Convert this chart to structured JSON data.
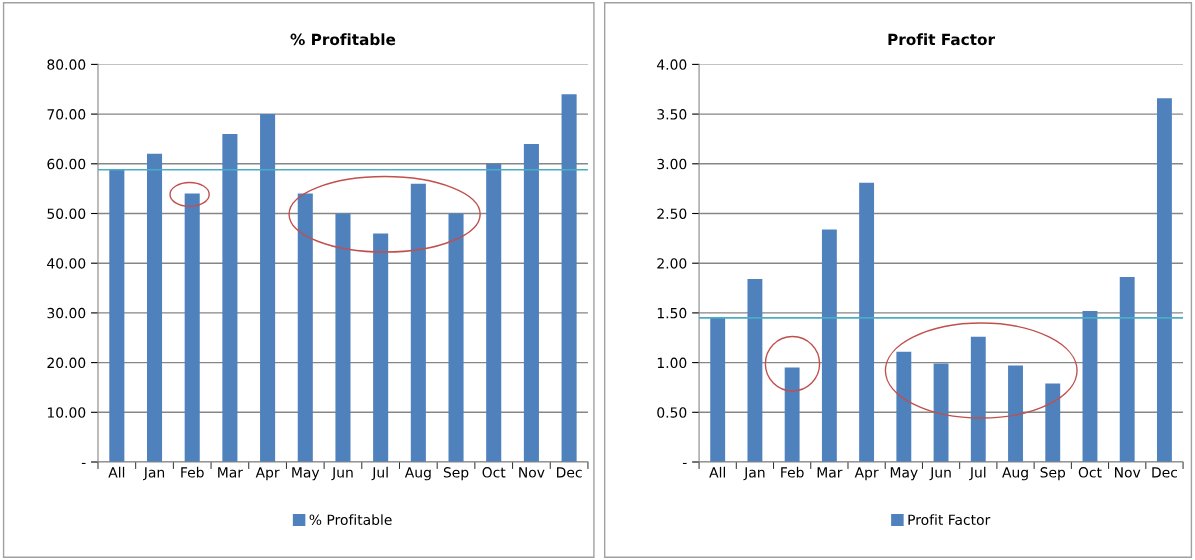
{
  "chart_data": [
    {
      "type": "bar",
      "title": "% Profitable",
      "categories": [
        "All",
        "Jan",
        "Feb",
        "Mar",
        "Apr",
        "May",
        "Jun",
        "Jul",
        "Aug",
        "Sep",
        "Oct",
        "Nov",
        "Dec"
      ],
      "series": [
        {
          "name": "% Profitable",
          "color": "#4f81bd",
          "values": [
            58.8,
            62,
            54,
            66,
            70,
            54,
            50,
            46,
            56,
            50,
            60,
            64,
            74
          ]
        }
      ],
      "ylim": [
        0,
        80
      ],
      "yticks": [
        {
          "value": 0,
          "label": "-"
        },
        {
          "value": 10,
          "label": "10.00"
        },
        {
          "value": 20,
          "label": "20.00"
        },
        {
          "value": 30,
          "label": "30.00"
        },
        {
          "value": 40,
          "label": "40.00"
        },
        {
          "value": 50,
          "label": "50.00"
        },
        {
          "value": 60,
          "label": "60.00"
        },
        {
          "value": 70,
          "label": "70.00"
        },
        {
          "value": 80,
          "label": "80.00"
        }
      ],
      "ref_lines": [
        {
          "axis": "y",
          "value": 58.8,
          "color": "#4bacc6"
        }
      ],
      "grid": "y",
      "legend": "bottom"
    },
    {
      "type": "bar",
      "title": "Profit Factor",
      "categories": [
        "All",
        "Jan",
        "Feb",
        "Mar",
        "Apr",
        "May",
        "Jun",
        "Jul",
        "Aug",
        "Sep",
        "Oct",
        "Nov",
        "Dec"
      ],
      "series": [
        {
          "name": "Profit Factor",
          "color": "#4f81bd",
          "values": [
            1.45,
            1.84,
            0.95,
            2.34,
            2.81,
            1.11,
            0.99,
            1.26,
            0.97,
            0.79,
            1.52,
            1.86,
            3.66
          ]
        }
      ],
      "ylim": [
        0,
        4
      ],
      "yticks": [
        {
          "value": 0,
          "label": "-"
        },
        {
          "value": 0.5,
          "label": "0.50"
        },
        {
          "value": 1,
          "label": "1.00"
        },
        {
          "value": 1.5,
          "label": "1.50"
        },
        {
          "value": 2,
          "label": "2.00"
        },
        {
          "value": 2.5,
          "label": "2.50"
        },
        {
          "value": 3,
          "label": "3.00"
        },
        {
          "value": 3.5,
          "label": "3.50"
        },
        {
          "value": 4,
          "label": "4.00"
        }
      ],
      "ref_lines": [
        {
          "axis": "y",
          "value": 1.45,
          "color": "#4bacc6"
        }
      ],
      "grid": "y",
      "legend": "bottom"
    }
  ]
}
